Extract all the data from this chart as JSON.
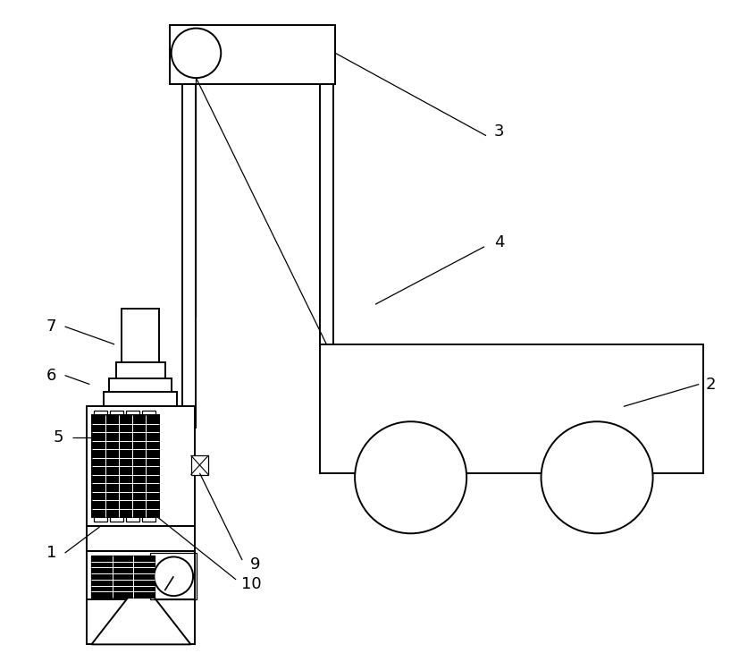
{
  "bg_color": "#ffffff",
  "line_color": "#000000",
  "lw": 1.4,
  "lw_thin": 0.9,
  "fig_width": 8.27,
  "fig_height": 7.4,
  "label_fontsize": 13
}
